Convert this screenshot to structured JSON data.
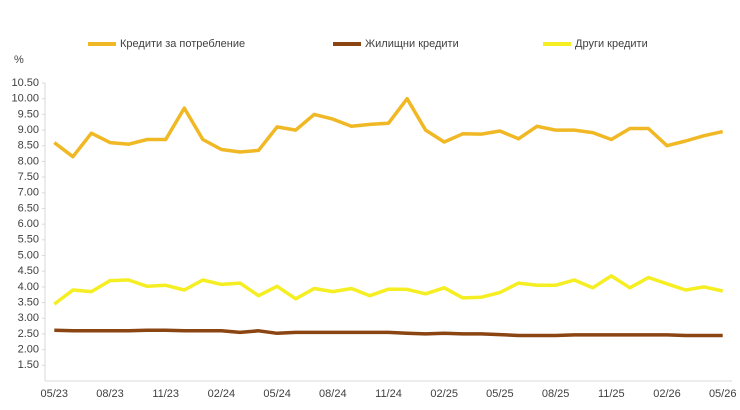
{
  "chart_data": {
    "type": "line",
    "y_label": "%",
    "categories": [
      "05/23",
      null,
      null,
      "08/23",
      null,
      null,
      "11/23",
      null,
      null,
      "02/24",
      null,
      null,
      "05/24",
      null,
      null,
      "08/24",
      null,
      null,
      "11/24",
      null,
      null,
      "02/25",
      null,
      null,
      "05/25",
      null,
      null,
      "08/25",
      null,
      null,
      "11/25",
      null,
      null,
      "02/26",
      null,
      null,
      "05/26"
    ],
    "series": [
      {
        "name": "Кредити за потребление",
        "color": "#f0b824",
        "values": [
          8.6,
          8.15,
          8.9,
          8.6,
          8.55,
          8.7,
          8.7,
          9.7,
          8.7,
          8.38,
          8.3,
          8.35,
          9.1,
          9.0,
          9.5,
          9.35,
          9.12,
          9.18,
          9.22,
          10.0,
          9.0,
          8.62,
          8.88,
          8.87,
          8.97,
          8.72,
          9.12,
          9.0,
          9.0,
          8.92,
          8.7,
          9.05,
          9.05,
          8.5,
          8.65,
          8.82,
          8.95
        ]
      },
      {
        "name": "Жилищни кредити",
        "color": "#8b4513",
        "values": [
          2.62,
          2.6,
          2.6,
          2.6,
          2.6,
          2.62,
          2.62,
          2.6,
          2.6,
          2.6,
          2.55,
          2.6,
          2.52,
          2.55,
          2.55,
          2.55,
          2.55,
          2.55,
          2.55,
          2.52,
          2.5,
          2.52,
          2.5,
          2.5,
          2.48,
          2.45,
          2.45,
          2.45,
          2.47,
          2.47,
          2.47,
          2.47,
          2.47,
          2.47,
          2.45,
          2.45,
          2.45
        ]
      },
      {
        "name": "Други кредити",
        "color": "#f5ee22",
        "values": [
          3.45,
          3.9,
          3.85,
          4.2,
          4.22,
          4.02,
          4.05,
          3.9,
          4.22,
          4.08,
          4.12,
          3.72,
          4.02,
          3.62,
          3.95,
          3.85,
          3.95,
          3.72,
          3.93,
          3.92,
          3.78,
          3.97,
          3.65,
          3.67,
          3.82,
          4.12,
          4.05,
          4.05,
          4.22,
          3.97,
          4.35,
          3.97,
          4.3,
          4.1,
          3.9,
          4.0,
          3.87
        ]
      }
    ],
    "ylim": [
      1.0,
      10.5
    ],
    "yticks": [
      {
        "value": 1.5,
        "label": "1.50"
      },
      {
        "value": 2,
        "label": "2.00"
      },
      {
        "value": 2.5,
        "label": "2.50"
      },
      {
        "value": 3,
        "label": "3.00"
      },
      {
        "value": 3.5,
        "label": "3.50"
      },
      {
        "value": 4,
        "label": "4.00"
      },
      {
        "value": 4.5,
        "label": "4.50"
      },
      {
        "value": 5,
        "label": "5.00"
      },
      {
        "value": 5.5,
        "label": "5.50"
      },
      {
        "value": 6,
        "label": "6.00"
      },
      {
        "value": 6.5,
        "label": "6.50"
      },
      {
        "value": 7,
        "label": "7.00"
      },
      {
        "value": 7.5,
        "label": "7.50"
      },
      {
        "value": 8,
        "label": "8.00"
      },
      {
        "value": 8.5,
        "label": "8.50"
      },
      {
        "value": 9,
        "label": "9.00"
      },
      {
        "value": 9.5,
        "label": "9.50"
      },
      {
        "value": 10,
        "label": "10.00"
      },
      {
        "value": 10.5,
        "label": "10.50"
      }
    ],
    "grid": false,
    "legend": "top"
  }
}
